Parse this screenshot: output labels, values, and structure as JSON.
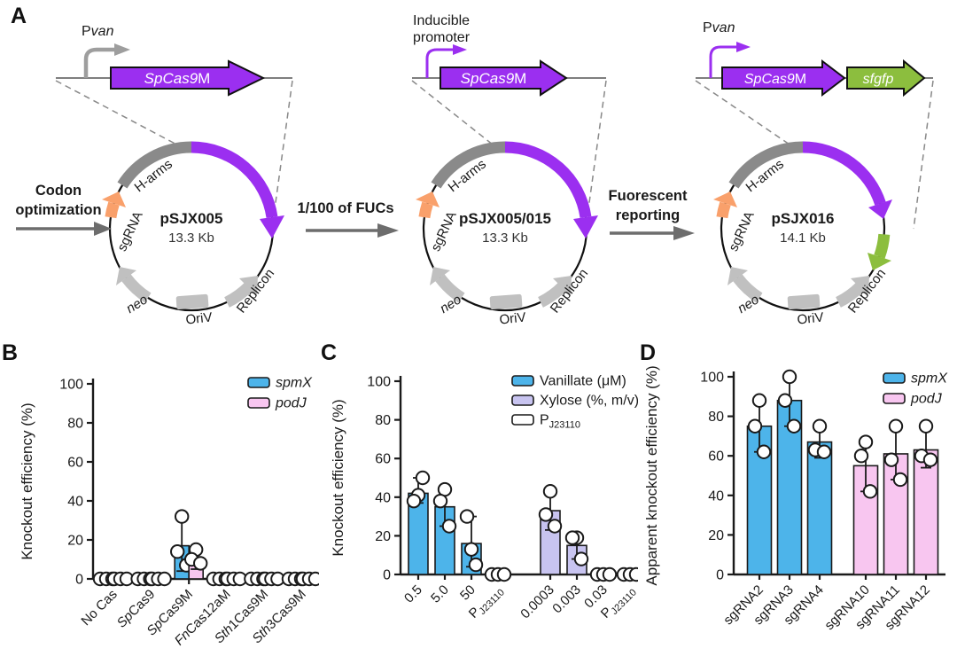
{
  "panel_labels": {
    "a": "A",
    "b": "B",
    "c": "C",
    "d": "D"
  },
  "colors": {
    "cas_purple": "#9b2ff0",
    "gfp_green": "#8cbe3e",
    "sgrna_orange": "#f9a06b",
    "harms_gray": "#8a8a8a",
    "feature_gray": "#c0c0c0",
    "promoter_gray": "#9e9e9e",
    "spmx_blue": "#4db4ea",
    "podj_pink": "#f8c6f0",
    "xylose_lavender": "#c8c4f0",
    "annotation_blue": "#2525e8"
  },
  "panelA": {
    "features": {
      "sgrna": "sgRNA",
      "harms": "H-arms",
      "neo": "neo",
      "oriv": "OriV",
      "replicon": "Replicon"
    },
    "constructs": [
      {
        "promoter_main": "P",
        "promoter_italic": "van",
        "gene_main": "SpCas9",
        "gene_suffix": "M",
        "name": "pSJX005",
        "size": "13.3 Kb"
      },
      {
        "promoter_line1": "Inducible",
        "promoter_line2": "promoter",
        "gene_main": "SpCas9",
        "gene_suffix": "M",
        "name": "pSJX005/015",
        "size": "13.3 Kb"
      },
      {
        "promoter_main": "P",
        "promoter_italic": "van",
        "gene_main": "SpCas9",
        "gene_suffix": "M",
        "gene2": "sfgfp",
        "name": "pSJX016",
        "size": "14.1 Kb"
      }
    ],
    "transitions": [
      {
        "line1": "Codon",
        "line2": "optimization"
      },
      {
        "line1": "1/100 of FUCs"
      },
      {
        "line1": "Fuorescent",
        "line2": "reporting"
      }
    ]
  },
  "chart_data": [
    {
      "panel": "B",
      "type": "bar",
      "ylabel": "Knockout efficiency (%)",
      "ylim": [
        0,
        100
      ],
      "yticks": [
        0,
        20,
        40,
        60,
        80,
        100
      ],
      "legend": [
        {
          "label": [
            {
              "t": "spmX",
              "style": "i"
            }
          ],
          "color": "#4db4ea"
        },
        {
          "label": [
            {
              "t": "podJ",
              "style": "i"
            }
          ],
          "color": "#f8c6f0"
        }
      ],
      "categories": [
        {
          "label": [
            {
              "t": "No Cas"
            }
          ],
          "bars": [
            {
              "color": "#4db4ea",
              "value": 0,
              "points": [
                0,
                0,
                0
              ]
            },
            {
              "color": "#f8c6f0",
              "value": 0,
              "points": [
                0,
                0,
                0
              ]
            }
          ]
        },
        {
          "label": [
            {
              "t": "Sp",
              "style": "i"
            },
            {
              "t": "Cas9"
            }
          ],
          "bars": [
            {
              "color": "#4db4ea",
              "value": 0,
              "points": [
                0,
                0,
                0
              ]
            },
            {
              "color": "#f8c6f0",
              "value": 0,
              "points": [
                0,
                0,
                0
              ]
            }
          ]
        },
        {
          "label": [
            {
              "t": "Sp",
              "style": "i"
            },
            {
              "t": "Cas9M"
            }
          ],
          "bars": [
            {
              "color": "#4db4ea",
              "value": 17,
              "err": [
                4,
                32
              ],
              "points": [
                32,
                14,
                7
              ]
            },
            {
              "color": "#f8c6f0",
              "value": 11,
              "err": [
                5,
                16
              ],
              "points": [
                15,
                10,
                8
              ]
            }
          ]
        },
        {
          "label": [
            {
              "t": "Fn",
              "style": "i"
            },
            {
              "t": "Cas12aM"
            }
          ],
          "bars": [
            {
              "color": "#4db4ea",
              "value": 0,
              "points": [
                0,
                0,
                0
              ]
            },
            {
              "color": "#f8c6f0",
              "value": 0,
              "points": [
                0,
                0,
                0
              ]
            }
          ]
        },
        {
          "label": [
            {
              "t": "Sth",
              "style": "i"
            },
            {
              "t": "1Cas9M"
            }
          ],
          "bars": [
            {
              "color": "#4db4ea",
              "value": 0,
              "points": [
                0,
                0,
                0
              ]
            },
            {
              "color": "#f8c6f0",
              "value": 0,
              "points": [
                0,
                0,
                0
              ]
            }
          ]
        },
        {
          "label": [
            {
              "t": "Sth",
              "style": "i"
            },
            {
              "t": "3Cas9M"
            }
          ],
          "bars": [
            {
              "color": "#4db4ea",
              "value": 0,
              "points": [
                0,
                0,
                0
              ]
            },
            {
              "color": "#f8c6f0",
              "value": 0,
              "points": [
                0,
                0,
                0
              ]
            }
          ]
        }
      ]
    },
    {
      "panel": "C",
      "type": "bar",
      "ylabel": "Knockout efficiency (%)",
      "ylim": [
        0,
        100
      ],
      "yticks": [
        0,
        20,
        40,
        60,
        80,
        100
      ],
      "legend": [
        {
          "label": [
            {
              "t": "Vanillate (μM)"
            }
          ],
          "color": "#4db4ea"
        },
        {
          "label": [
            {
              "t": "Xylose (%, m/v)"
            }
          ],
          "color": "#c8c4f0"
        },
        {
          "label": [
            {
              "t": "P"
            },
            {
              "t": "J23110",
              "style": "sub"
            }
          ],
          "color": "#ffffff"
        }
      ],
      "categories": [
        {
          "label": [
            {
              "t": "0.5"
            }
          ],
          "bars": [
            {
              "color": "#4db4ea",
              "value": 42,
              "err": [
                37,
                50
              ],
              "points": [
                41,
                38,
                50
              ]
            }
          ]
        },
        {
          "label": [
            {
              "t": "5.0"
            }
          ],
          "bars": [
            {
              "color": "#4db4ea",
              "value": 35,
              "err": [
                25,
                45
              ],
              "points": [
                44,
                38,
                25
              ]
            }
          ]
        },
        {
          "label": [
            {
              "t": "50"
            }
          ],
          "bars": [
            {
              "color": "#4db4ea",
              "value": 16,
              "err": [
                4,
                30
              ],
              "points": [
                13,
                30,
                5
              ]
            }
          ]
        },
        {
          "label": [
            {
              "t": "P"
            },
            {
              "t": "J23110",
              "style": "sub"
            }
          ],
          "bars": [
            {
              "color": "#ffffff",
              "value": 0,
              "points": [
                0,
                0,
                0
              ]
            }
          ]
        },
        {
          "label": [
            {
              "t": "0.0003"
            }
          ],
          "gap_before": true,
          "bars": [
            {
              "color": "#c8c4f0",
              "value": 33,
              "err": [
                23,
                44
              ],
              "points": [
                43,
                31,
                25
              ]
            }
          ]
        },
        {
          "label": [
            {
              "t": "0.003"
            }
          ],
          "bars": [
            {
              "color": "#c8c4f0",
              "value": 15,
              "err": [
                8,
                21
              ],
              "points": [
                19,
                19,
                8
              ]
            }
          ]
        },
        {
          "label": [
            {
              "t": "0.03"
            }
          ],
          "bars": [
            {
              "color": "#c8c4f0",
              "value": 0,
              "points": [
                0,
                0,
                0
              ]
            }
          ]
        },
        {
          "label": [
            {
              "t": "P"
            },
            {
              "t": "J23110",
              "style": "sub"
            }
          ],
          "bars": [
            {
              "color": "#ffffff",
              "value": 0,
              "points": [
                0,
                0,
                0
              ]
            }
          ]
        }
      ]
    },
    {
      "panel": "D",
      "type": "bar",
      "ylabel": "Apparent knockout efficiency (%)",
      "ylim": [
        0,
        100
      ],
      "yticks": [
        0,
        20,
        40,
        60,
        80,
        100
      ],
      "legend": [
        {
          "label": [
            {
              "t": "spmX",
              "style": "i"
            }
          ],
          "color": "#4db4ea"
        },
        {
          "label": [
            {
              "t": "podJ",
              "style": "i"
            }
          ],
          "color": "#f8c6f0"
        }
      ],
      "categories": [
        {
          "label": [
            {
              "t": "sgRNA2"
            }
          ],
          "bars": [
            {
              "color": "#4db4ea",
              "value": 75,
              "err": [
                62,
                88
              ],
              "points": [
                88,
                75,
                62
              ]
            }
          ]
        },
        {
          "label": [
            {
              "t": "sgRNA3"
            }
          ],
          "bars": [
            {
              "color": "#4db4ea",
              "value": 88,
              "err": [
                75,
                100
              ],
              "points": [
                100,
                88,
                75
              ]
            }
          ]
        },
        {
          "label": [
            {
              "t": "sgRNA4"
            }
          ],
          "bars": [
            {
              "color": "#4db4ea",
              "value": 67,
              "err": [
                59,
                75
              ],
              "points": [
                75,
                63,
                62
              ]
            }
          ]
        },
        {
          "label": [
            {
              "t": "sgRNA10"
            }
          ],
          "gap_before": true,
          "bars": [
            {
              "color": "#f8c6f0",
              "value": 55,
              "err": [
                42,
                67
              ],
              "points": [
                67,
                60,
                42
              ]
            }
          ]
        },
        {
          "label": [
            {
              "t": "sgRNA11"
            }
          ],
          "bars": [
            {
              "color": "#f8c6f0",
              "value": 61,
              "err": [
                48,
                75
              ],
              "points": [
                75,
                58,
                48
              ]
            }
          ]
        },
        {
          "label": [
            {
              "t": "sgRNA12"
            }
          ],
          "bars": [
            {
              "color": "#f8c6f0",
              "value": 63,
              "err": [
                54,
                75
              ],
              "points": [
                75,
                60,
                58
              ]
            }
          ]
        }
      ]
    }
  ]
}
